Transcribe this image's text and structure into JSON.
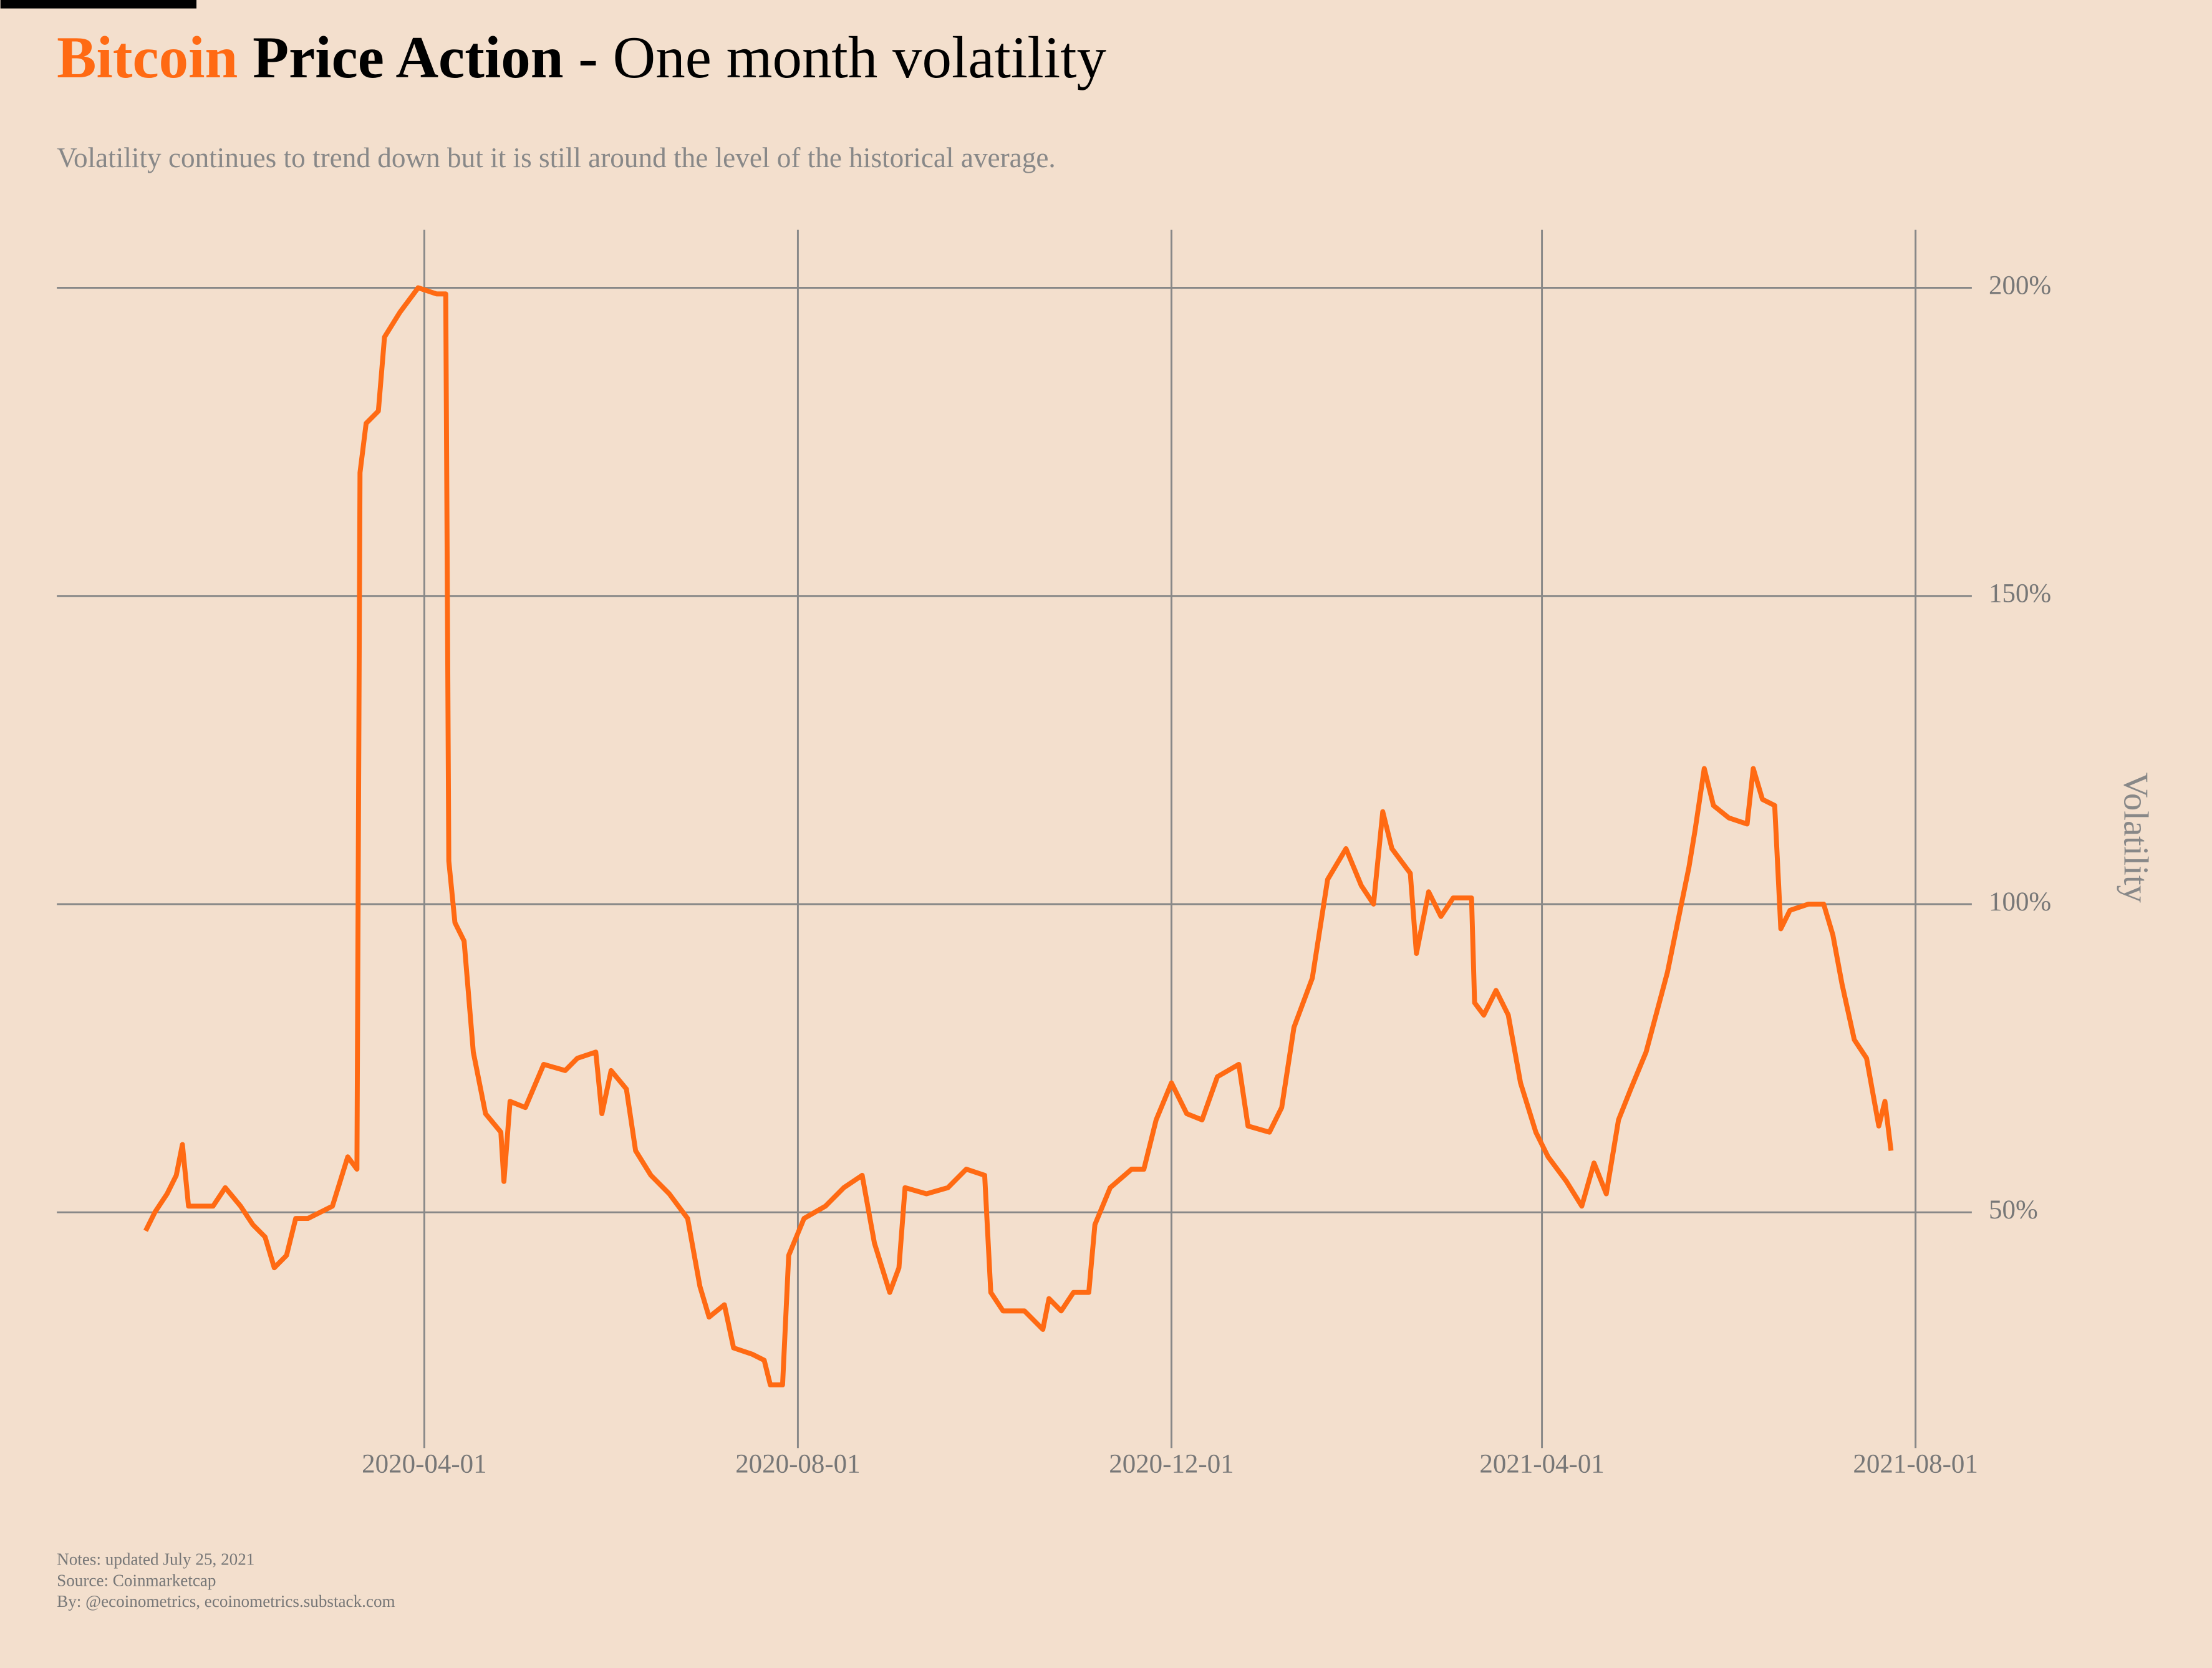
{
  "chart_data": {
    "type": "line",
    "title": [
      "Bitcoin",
      "Price Action",
      "- One month volatility"
    ],
    "subtitle": "Volatility continues to trend down but it is still around the level of the historical average.",
    "y_label": "Volatility",
    "notes": [
      "Notes: updated July 25, 2021",
      "Source: Coinmarketcap",
      "By: @ecoinometrics, ecoinometrics.substack.com"
    ],
    "x": [
      "2020-01-01",
      "2020-01-04",
      "2020-01-08",
      "2020-01-11",
      "2020-01-13",
      "2020-01-15",
      "2020-01-19",
      "2020-01-23",
      "2020-01-27",
      "2020-02-01",
      "2020-02-05",
      "2020-02-09",
      "2020-02-12",
      "2020-02-16",
      "2020-02-19",
      "2020-02-23",
      "2020-03-02",
      "2020-03-07",
      "2020-03-10",
      "2020-03-11",
      "2020-03-13",
      "2020-03-17",
      "2020-03-19",
      "2020-03-24",
      "2020-03-30",
      "2020-04-05",
      "2020-04-08",
      "2020-04-09",
      "2020-04-11",
      "2020-04-14",
      "2020-04-17",
      "2020-04-21",
      "2020-04-26",
      "2020-04-27",
      "2020-04-29",
      "2020-05-04",
      "2020-05-10",
      "2020-05-17",
      "2020-05-21",
      "2020-05-27",
      "2020-05-29",
      "2020-06-01",
      "2020-06-06",
      "2020-06-09",
      "2020-06-14",
      "2020-06-20",
      "2020-06-26",
      "2020-06-30",
      "2020-07-03",
      "2020-07-08",
      "2020-07-11",
      "2020-07-17",
      "2020-07-21",
      "2020-07-23",
      "2020-07-27",
      "2020-07-29",
      "2020-08-03",
      "2020-08-10",
      "2020-08-16",
      "2020-08-22",
      "2020-08-26",
      "2020-08-31",
      "2020-09-03",
      "2020-09-05",
      "2020-09-12",
      "2020-09-19",
      "2020-09-25",
      "2020-10-01",
      "2020-10-03",
      "2020-10-07",
      "2020-10-14",
      "2020-10-20",
      "2020-10-22",
      "2020-10-26",
      "2020-10-30",
      "2020-11-04",
      "2020-11-06",
      "2020-11-11",
      "2020-11-18",
      "2020-11-22",
      "2020-11-26",
      "2020-12-01",
      "2020-12-06",
      "2020-12-11",
      "2020-12-16",
      "2020-12-23",
      "2020-12-26",
      "2021-01-02",
      "2021-01-06",
      "2021-01-10",
      "2021-01-16",
      "2021-01-21",
      "2021-01-27",
      "2021-02-01",
      "2021-02-05",
      "2021-02-08",
      "2021-02-11",
      "2021-02-17",
      "2021-02-19",
      "2021-02-23",
      "2021-02-27",
      "2021-03-03",
      "2021-03-09",
      "2021-03-10",
      "2021-03-13",
      "2021-03-17",
      "2021-03-21",
      "2021-03-25",
      "2021-03-30",
      "2021-04-03",
      "2021-04-09",
      "2021-04-14",
      "2021-04-18",
      "2021-04-22",
      "2021-04-26",
      "2021-04-30",
      "2021-05-05",
      "2021-05-12",
      "2021-05-19",
      "2021-05-21",
      "2021-05-24",
      "2021-05-27",
      "2021-06-01",
      "2021-06-07",
      "2021-06-09",
      "2021-06-12",
      "2021-06-16",
      "2021-06-18",
      "2021-06-21",
      "2021-06-27",
      "2021-07-02",
      "2021-07-05",
      "2021-07-08",
      "2021-07-12",
      "2021-07-16",
      "2021-07-20",
      "2021-07-22",
      "2021-07-24"
    ],
    "series": [
      {
        "name": "Volatility",
        "color": "#ff6a13",
        "values": [
          47,
          50,
          53,
          56,
          61,
          51,
          51,
          51,
          54,
          51,
          48,
          46,
          41,
          43,
          49,
          49,
          51,
          59,
          57,
          170,
          178,
          180,
          192,
          196,
          200,
          199,
          199,
          107,
          97,
          94,
          76,
          66,
          63,
          55,
          68,
          67,
          74,
          73,
          75,
          76,
          66,
          73,
          70,
          60,
          56,
          53,
          49,
          38,
          33,
          35,
          28,
          27,
          26,
          22,
          22,
          43,
          49,
          51,
          54,
          56,
          45,
          37,
          41,
          54,
          53,
          54,
          57,
          56,
          37,
          34,
          34,
          31,
          36,
          34,
          37,
          37,
          48,
          54,
          57,
          57,
          65,
          71,
          66,
          65,
          72,
          74,
          64,
          63,
          67,
          80,
          88,
          104,
          109,
          103,
          100,
          115,
          109,
          105,
          92,
          102,
          98,
          101,
          101,
          84,
          82,
          86,
          82,
          71,
          63,
          59,
          55,
          51,
          58,
          53,
          65,
          70,
          76,
          89,
          106,
          112,
          122,
          116,
          114,
          113,
          122,
          117,
          116,
          96,
          99,
          100,
          100,
          95,
          87,
          78,
          75,
          64,
          68,
          60
        ]
      }
    ],
    "xlim": [
      "2019-12-03",
      "2021-08-18"
    ],
    "xticks": [
      "2020-04-01",
      "2020-08-01",
      "2020-12-01",
      "2021-04-01",
      "2021-08-01"
    ],
    "ylim": [
      14.5,
      209.4
    ],
    "yticks": [
      {
        "value": 50,
        "label": "50%"
      },
      {
        "value": 100,
        "label": "100%"
      },
      {
        "value": 150,
        "label": "150%"
      },
      {
        "value": 200,
        "label": "200%"
      }
    ],
    "grid": true
  }
}
